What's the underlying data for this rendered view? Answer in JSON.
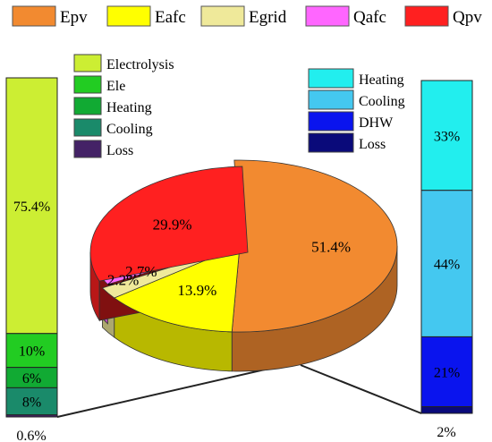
{
  "chart_data": [
    {
      "type": "pie",
      "title": "",
      "legend_position": "top",
      "series": [
        {
          "name": "Epv",
          "value": 51.4,
          "label": "51.4%",
          "color": "#f28a30"
        },
        {
          "name": "Eafc",
          "value": 13.9,
          "label": "13.9%",
          "color": "#ffff00"
        },
        {
          "name": "Egrid",
          "value": 2.2,
          "label": "2.2%",
          "color": "#efe99a"
        },
        {
          "name": "Qafc",
          "value": 2.7,
          "label": "2.7%",
          "color": "#ff66ff"
        },
        {
          "name": "Qpv",
          "value": 29.9,
          "label": "29.9%",
          "color": "#ff2020"
        }
      ]
    },
    {
      "type": "bar",
      "stacked": true,
      "title": "",
      "legend_position": "top-right of bar",
      "series": [
        {
          "name": "Electrolysis",
          "value": 75.4,
          "label": "75.4%",
          "color": "#ccee33"
        },
        {
          "name": "Ele",
          "value": 10,
          "label": "10%",
          "color": "#22cc22"
        },
        {
          "name": "Heating",
          "value": 6,
          "label": "6%",
          "color": "#11aa33"
        },
        {
          "name": "Cooling",
          "value": 8,
          "label": "8%",
          "color": "#1a8a6a"
        },
        {
          "name": "Loss",
          "value": 0.6,
          "label": "0.6%",
          "color": "#442266"
        }
      ]
    },
    {
      "type": "bar",
      "stacked": true,
      "title": "",
      "legend_position": "top-left of bar",
      "series": [
        {
          "name": "Heating",
          "value": 33,
          "label": "33%",
          "color": "#22eeee"
        },
        {
          "name": "Cooling",
          "value": 44,
          "label": "44%",
          "color": "#44c8f0"
        },
        {
          "name": "DHW",
          "value": 21,
          "label": "21%",
          "color": "#0a14ee"
        },
        {
          "name": "Loss",
          "value": 2,
          "label": "2%",
          "color": "#0a0a7a"
        }
      ]
    }
  ]
}
